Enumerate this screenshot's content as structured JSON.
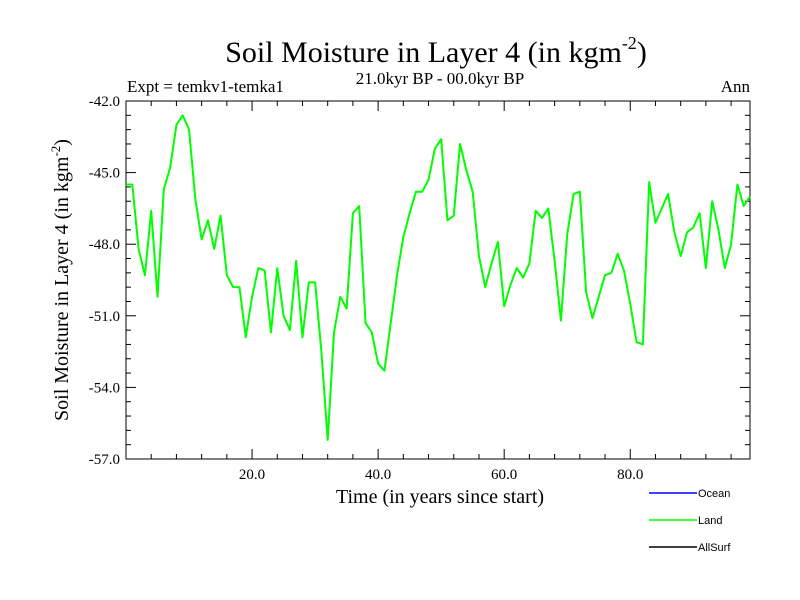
{
  "chart_data": {
    "type": "line",
    "title": "Soil Moisture in Layer 4 (in kgm",
    "title_sup": "-2",
    "title_close": ")",
    "subtitle_left": "Expt = temkv1-temka1",
    "subtitle_center": "21.0kyr BP - 00.0kyr BP",
    "subtitle_right": "Ann",
    "xlabel": "Time (in years since start)",
    "ylabel": "Soil Moisture in Layer 4 (in kgm",
    "ylabel_sup": "-2",
    "ylabel_close": ")",
    "xlim": [
      0,
      99
    ],
    "ylim": [
      -57.0,
      -42.0
    ],
    "xticks": [
      20,
      40,
      60,
      80
    ],
    "xtick_labels": [
      "20.0",
      "40.0",
      "60.0",
      "80.0"
    ],
    "yticks": [
      -57,
      -54,
      -51,
      -48,
      -45,
      -42
    ],
    "ytick_labels": [
      "-57.0",
      "-54.0",
      "-51.0",
      "-48.0",
      "-45.0",
      "-42.0"
    ],
    "legend": [
      {
        "name": "Ocean",
        "color": "#0000ff"
      },
      {
        "name": "Land",
        "color": "#00ff00"
      },
      {
        "name": "AllSurf",
        "color": "#000000"
      }
    ],
    "series": [
      {
        "name": "Land",
        "color": "#00ff00",
        "x": [
          0,
          1,
          2,
          3,
          4,
          5,
          6,
          7,
          8,
          9,
          10,
          11,
          12,
          13,
          14,
          15,
          16,
          17,
          18,
          19,
          20,
          21,
          22,
          23,
          24,
          25,
          26,
          27,
          28,
          29,
          30,
          31,
          32,
          33,
          34,
          35,
          36,
          37,
          38,
          39,
          40,
          41,
          42,
          43,
          44,
          45,
          46,
          47,
          48,
          49,
          50,
          51,
          52,
          53,
          54,
          55,
          56,
          57,
          58,
          59,
          60,
          61,
          62,
          63,
          64,
          65,
          66,
          67,
          68,
          69,
          70,
          71,
          72,
          73,
          74,
          75,
          76,
          77,
          78,
          79,
          80,
          81,
          82,
          83,
          84,
          85,
          86,
          87,
          88,
          89,
          90,
          91,
          92,
          93,
          94,
          95,
          96,
          97,
          98,
          99
        ],
        "values": [
          -45.5,
          -45.5,
          -48.2,
          -49.3,
          -46.6,
          -50.2,
          -45.7,
          -44.8,
          -43.0,
          -42.6,
          -43.2,
          -46.1,
          -47.8,
          -47.0,
          -48.2,
          -46.8,
          -49.3,
          -49.8,
          -49.8,
          -51.9,
          -50.2,
          -49.0,
          -49.1,
          -51.7,
          -49.0,
          -51.0,
          -51.6,
          -48.7,
          -51.9,
          -49.6,
          -49.6,
          -52.5,
          -56.2,
          -51.7,
          -50.2,
          -50.7,
          -46.7,
          -46.4,
          -51.3,
          -51.7,
          -53.0,
          -53.3,
          -51.3,
          -49.3,
          -47.7,
          -46.7,
          -45.8,
          -45.8,
          -45.3,
          -44.0,
          -43.6,
          -47.0,
          -46.8,
          -43.8,
          -44.9,
          -45.8,
          -48.5,
          -49.8,
          -48.8,
          -47.9,
          -50.6,
          -49.7,
          -49.0,
          -49.4,
          -48.8,
          -46.6,
          -46.9,
          -46.5,
          -48.7,
          -51.2,
          -47.6,
          -45.9,
          -45.8,
          -50.0,
          -51.1,
          -50.2,
          -49.3,
          -49.2,
          -48.4,
          -49.1,
          -50.5,
          -52.1,
          -52.2,
          -45.4,
          -47.1,
          -46.5,
          -45.9,
          -47.5,
          -48.5,
          -47.5,
          -47.3,
          -46.7,
          -49.0,
          -46.2,
          -47.4,
          -49.0,
          -48.0,
          -45.5,
          -46.4,
          -46.0
        ]
      }
    ]
  }
}
